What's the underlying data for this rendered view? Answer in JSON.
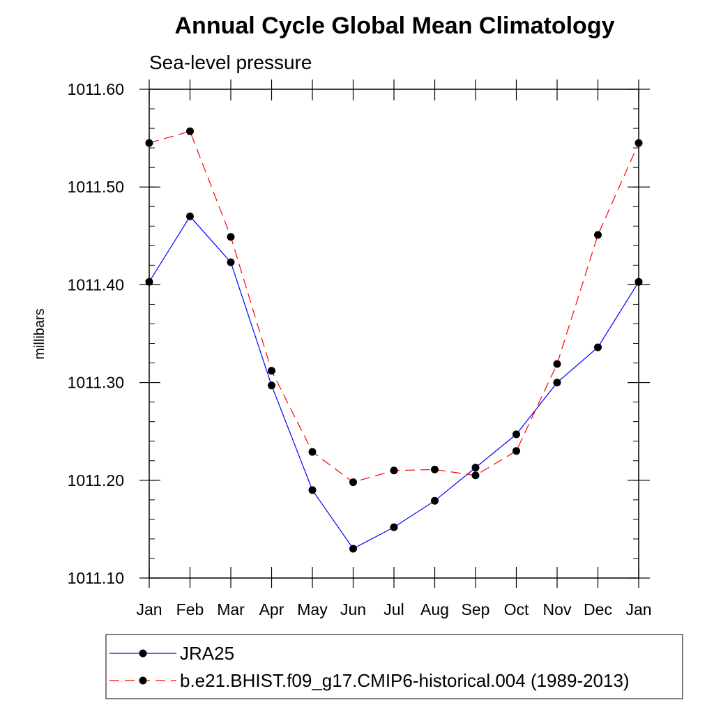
{
  "chart_data": {
    "type": "line",
    "title": "Annual Cycle Global Mean Climatology",
    "subtitle": "Sea-level pressure",
    "xlabel": "",
    "ylabel": "millibars",
    "categories": [
      "Jan",
      "Feb",
      "Mar",
      "Apr",
      "May",
      "Jun",
      "Jul",
      "Aug",
      "Sep",
      "Oct",
      "Nov",
      "Dec",
      "Jan"
    ],
    "ylim": [
      1011.1,
      1011.6
    ],
    "yticks": [
      "1011.10",
      "1011.20",
      "1011.30",
      "1011.40",
      "1011.50",
      "1011.60"
    ],
    "yticks_values": [
      1011.1,
      1011.2,
      1011.3,
      1011.4,
      1011.5,
      1011.6
    ],
    "grid": false,
    "legend_position": "bottom",
    "series": [
      {
        "name": "JRA25",
        "color": "#0000ff",
        "dash": "solid",
        "values": [
          1011.403,
          1011.47,
          1011.423,
          1011.297,
          1011.19,
          1011.13,
          1011.152,
          1011.179,
          1011.213,
          1011.247,
          1011.3,
          1011.336,
          1011.403
        ]
      },
      {
        "name": "b.e21.BHIST.f09_g17.CMIP6-historical.004 (1989-2013)",
        "color": "#ff0000",
        "dash": "dashed",
        "values": [
          1011.545,
          1011.557,
          1011.449,
          1011.312,
          1011.229,
          1011.198,
          1011.21,
          1011.211,
          1011.205,
          1011.23,
          1011.319,
          1011.451,
          1011.545
        ]
      }
    ]
  }
}
